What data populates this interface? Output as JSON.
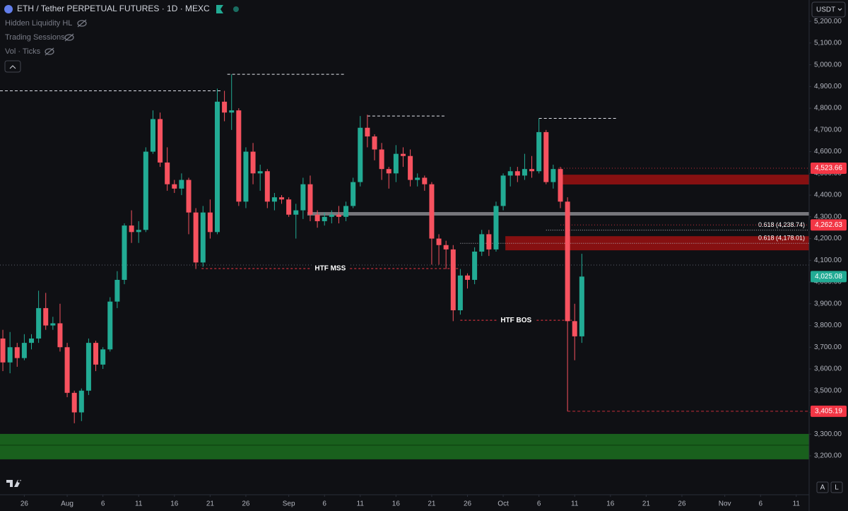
{
  "chart_data": {
    "type": "candlestick",
    "title": "ETH / Tether PERPETUAL FUTURES · 1D · MEXC",
    "indicators": [
      "Hidden Liquidity HL",
      "Trading Sessions",
      "Vol · Ticks"
    ],
    "currency": "USDT",
    "scale_buttons": [
      "A",
      "L"
    ],
    "x": [
      -8,
      -7,
      -6,
      -5,
      -4,
      -3,
      -2,
      -1,
      0,
      1,
      2,
      3,
      4,
      5,
      6,
      7,
      8,
      9,
      10,
      11,
      12,
      13,
      14,
      15,
      16,
      17,
      18,
      19,
      20,
      21,
      22,
      23,
      24,
      25,
      26,
      27,
      28,
      29,
      30,
      31,
      32,
      33,
      34,
      35,
      36,
      37,
      38,
      39,
      40,
      41,
      42,
      43,
      44,
      45,
      46,
      47,
      48,
      49,
      50,
      51,
      52,
      53,
      54,
      55,
      56,
      57,
      58,
      59,
      60,
      61,
      62,
      63,
      64,
      65,
      66,
      67,
      68,
      69,
      70,
      71,
      72,
      73
    ],
    "open": [
      3740,
      3630,
      3700,
      3650,
      3720,
      3740,
      3880,
      3800,
      3810,
      3700,
      3490,
      3400,
      3500,
      3720,
      3620,
      3690,
      3910,
      4010,
      4260,
      4230,
      4240,
      4600,
      4750,
      4550,
      4450,
      4430,
      4470,
      4320,
      4090,
      4320,
      4230,
      4830,
      4780,
      4790,
      4370,
      4600,
      4500,
      4510,
      4370,
      4390,
      4380,
      4310,
      4330,
      4450,
      4310,
      4280,
      4300,
      4310,
      4300,
      4350,
      4460,
      4710,
      4670,
      4610,
      4520,
      4500,
      4590,
      4580,
      4470,
      4480,
      4450,
      4200,
      4170,
      4150,
      3870,
      4030,
      4010,
      4140,
      4220,
      4150,
      4350,
      4490,
      4510,
      4490,
      4520,
      4510,
      4690,
      4460,
      4520,
      4370,
      3820,
      3750
    ],
    "high": [
      3780,
      3770,
      3720,
      3760,
      3760,
      3960,
      3950,
      3840,
      3900,
      3720,
      3500,
      3510,
      3740,
      3730,
      3700,
      3930,
      4050,
      4270,
      4330,
      4280,
      4620,
      4790,
      4780,
      4620,
      4470,
      4500,
      4480,
      4340,
      4350,
      4380,
      4890,
      4880,
      4956,
      4800,
      4620,
      4640,
      4540,
      4520,
      4410,
      4400,
      4390,
      4360,
      4480,
      4490,
      4330,
      4320,
      4330,
      4350,
      4370,
      4480,
      4764,
      4770,
      4680,
      4640,
      4530,
      4630,
      4620,
      4610,
      4500,
      4490,
      4460,
      4220,
      4190,
      4170,
      4060,
      4040,
      4160,
      4240,
      4240,
      4370,
      4500,
      4530,
      4530,
      4590,
      4580,
      4753,
      4700,
      4540,
      4530,
      4390,
      3900,
      4130
    ],
    "low": [
      3590,
      3580,
      3610,
      3640,
      3690,
      3720,
      3780,
      3780,
      3680,
      3470,
      3350,
      3360,
      3480,
      3590,
      3600,
      3680,
      3880,
      3990,
      4180,
      4180,
      4230,
      4590,
      4530,
      4420,
      4410,
      4400,
      4220,
      4060,
      4070,
      4200,
      4220,
      4740,
      4700,
      4350,
      4340,
      4450,
      4420,
      4340,
      4330,
      4360,
      4300,
      4200,
      4290,
      4280,
      4250,
      4260,
      4270,
      4270,
      4280,
      4340,
      4440,
      4620,
      4560,
      4470,
      4430,
      4460,
      4530,
      4440,
      4440,
      4420,
      4080,
      4080,
      4060,
      3820,
      3850,
      3970,
      3990,
      4120,
      4120,
      4140,
      4330,
      4440,
      4460,
      4470,
      4480,
      4500,
      4450,
      4430,
      4340,
      3405.19,
      3640,
      3720
    ],
    "close": [
      3630,
      3700,
      3650,
      3720,
      3740,
      3880,
      3800,
      3810,
      3700,
      3490,
      3400,
      3500,
      3720,
      3620,
      3690,
      3910,
      4010,
      4260,
      4230,
      4240,
      4600,
      4750,
      4550,
      4450,
      4430,
      4470,
      4320,
      4090,
      4320,
      4230,
      4830,
      4780,
      4790,
      4370,
      4600,
      4500,
      4510,
      4370,
      4390,
      4380,
      4310,
      4330,
      4450,
      4310,
      4280,
      4300,
      4310,
      4300,
      4350,
      4460,
      4710,
      4670,
      4610,
      4520,
      4500,
      4590,
      4580,
      4470,
      4480,
      4450,
      4200,
      4170,
      4150,
      3870,
      4030,
      4010,
      4140,
      4220,
      4150,
      4350,
      4490,
      4510,
      4490,
      4520,
      4510,
      4690,
      4460,
      4520,
      4370,
      3820,
      3750,
      4025.08
    ],
    "up_color": "#22ab94",
    "down_color": "#f7525f",
    "xlim": [
      -8.4,
      104.8
    ],
    "xticks": [
      {
        "value": -5,
        "label": "26"
      },
      {
        "value": 1,
        "label": "Aug"
      },
      6,
      11,
      16,
      21,
      26,
      {
        "value": 32,
        "label": "Sep"
      },
      {
        "value": 37,
        "label": "6"
      },
      {
        "value": 42,
        "label": "11"
      },
      {
        "value": 47,
        "label": "16"
      },
      {
        "value": 52,
        "label": "21"
      },
      {
        "value": 57,
        "label": "26"
      },
      {
        "value": 62,
        "label": "Oct"
      },
      {
        "value": 67,
        "label": "6"
      },
      {
        "value": 72,
        "label": "11"
      },
      {
        "value": 77,
        "label": "16"
      },
      {
        "value": 82,
        "label": "21"
      },
      {
        "value": 87,
        "label": "26"
      },
      {
        "value": 93,
        "label": "Nov"
      },
      {
        "value": 98,
        "label": "6"
      },
      {
        "value": 103,
        "label": "11"
      }
    ],
    "ylim": [
      3021,
      5298
    ],
    "yticks": [
      {
        "value": 3200,
        "label": "3,200.00"
      },
      {
        "value": 3300,
        "label": "3,300.00"
      },
      {
        "value": 3400,
        "label": "3,400.00"
      },
      {
        "value": 3500,
        "label": "3,500.00"
      },
      {
        "value": 3600,
        "label": "3,600.00"
      },
      {
        "value": 3700,
        "label": "3,700.00"
      },
      {
        "value": 3800,
        "label": "3,800.00"
      },
      {
        "value": 3900,
        "label": "3,900.00"
      },
      {
        "value": 4000,
        "label": "4,000.00"
      },
      {
        "value": 4100,
        "label": "4,100.00"
      },
      {
        "value": 4200,
        "label": "4,200.00"
      },
      {
        "value": 4300,
        "label": "4,300.00"
      },
      {
        "value": 4400,
        "label": "4,400.00"
      },
      {
        "value": 4500,
        "label": "4,500.00"
      },
      {
        "value": 4600,
        "label": "4,600.00"
      },
      {
        "value": 4700,
        "label": "4,700.00"
      },
      {
        "value": 4800,
        "label": "4,800.00"
      },
      {
        "value": 4900,
        "label": "4,900.00"
      },
      {
        "value": 5000,
        "label": "5,000.00"
      },
      {
        "value": 5100,
        "label": "5,100.00"
      },
      {
        "value": 5200,
        "label": "5,200.00"
      }
    ],
    "zones": [
      {
        "from": 4449,
        "to": 4494,
        "start": 69.7,
        "color": "#9b1111"
      },
      {
        "from": 4146,
        "to": 4211,
        "start": 62.3,
        "color": "#9b1111"
      },
      {
        "from": 4306,
        "to": 4322,
        "start": 34.6,
        "color": "#8a8a8e"
      },
      {
        "from": 3184,
        "to": 3301,
        "start": -8.4,
        "color": "#1b6e1e",
        "midline": 3249
      }
    ],
    "reference_level": 4078,
    "high_lines": [
      {
        "value": 4880,
        "start": -8.4,
        "end": 22.5
      },
      {
        "value": 4956,
        "start": 23.4,
        "end": 40
      },
      {
        "value": 4764,
        "start": 43,
        "end": 54
      },
      {
        "value": 4753,
        "start": 67,
        "end": 77.8
      }
    ],
    "structure_labels": [
      {
        "label": "HTF MSS",
        "value": 4062,
        "start": 19.8,
        "end": 55.8
      },
      {
        "label": "HTF BOS",
        "value": 3824,
        "start": 56,
        "end": 71.6
      }
    ],
    "fib_levels": [
      {
        "label": "0.618 (4,238.74)",
        "value": 4238.74,
        "start": 68
      },
      {
        "label": "0.618 (4,178.01)",
        "value": 4178.01,
        "start": 56
      }
    ],
    "price_labels": [
      {
        "label": "4,523.66",
        "value": 4523.66,
        "color": "#f23645",
        "start": 69.7,
        "line": "dotted"
      },
      {
        "label": "4,262.63",
        "value": 4262.63,
        "color": "#f23645",
        "start": 70,
        "line": "dotted"
      },
      {
        "label": "4,025.08",
        "value": 4025.08,
        "color": "#22ab94",
        "start": 73,
        "line": "none"
      },
      {
        "label": "3,405.19",
        "value": 3405.19,
        "color": "#f23645",
        "start": 71,
        "line": "dashed"
      }
    ]
  }
}
